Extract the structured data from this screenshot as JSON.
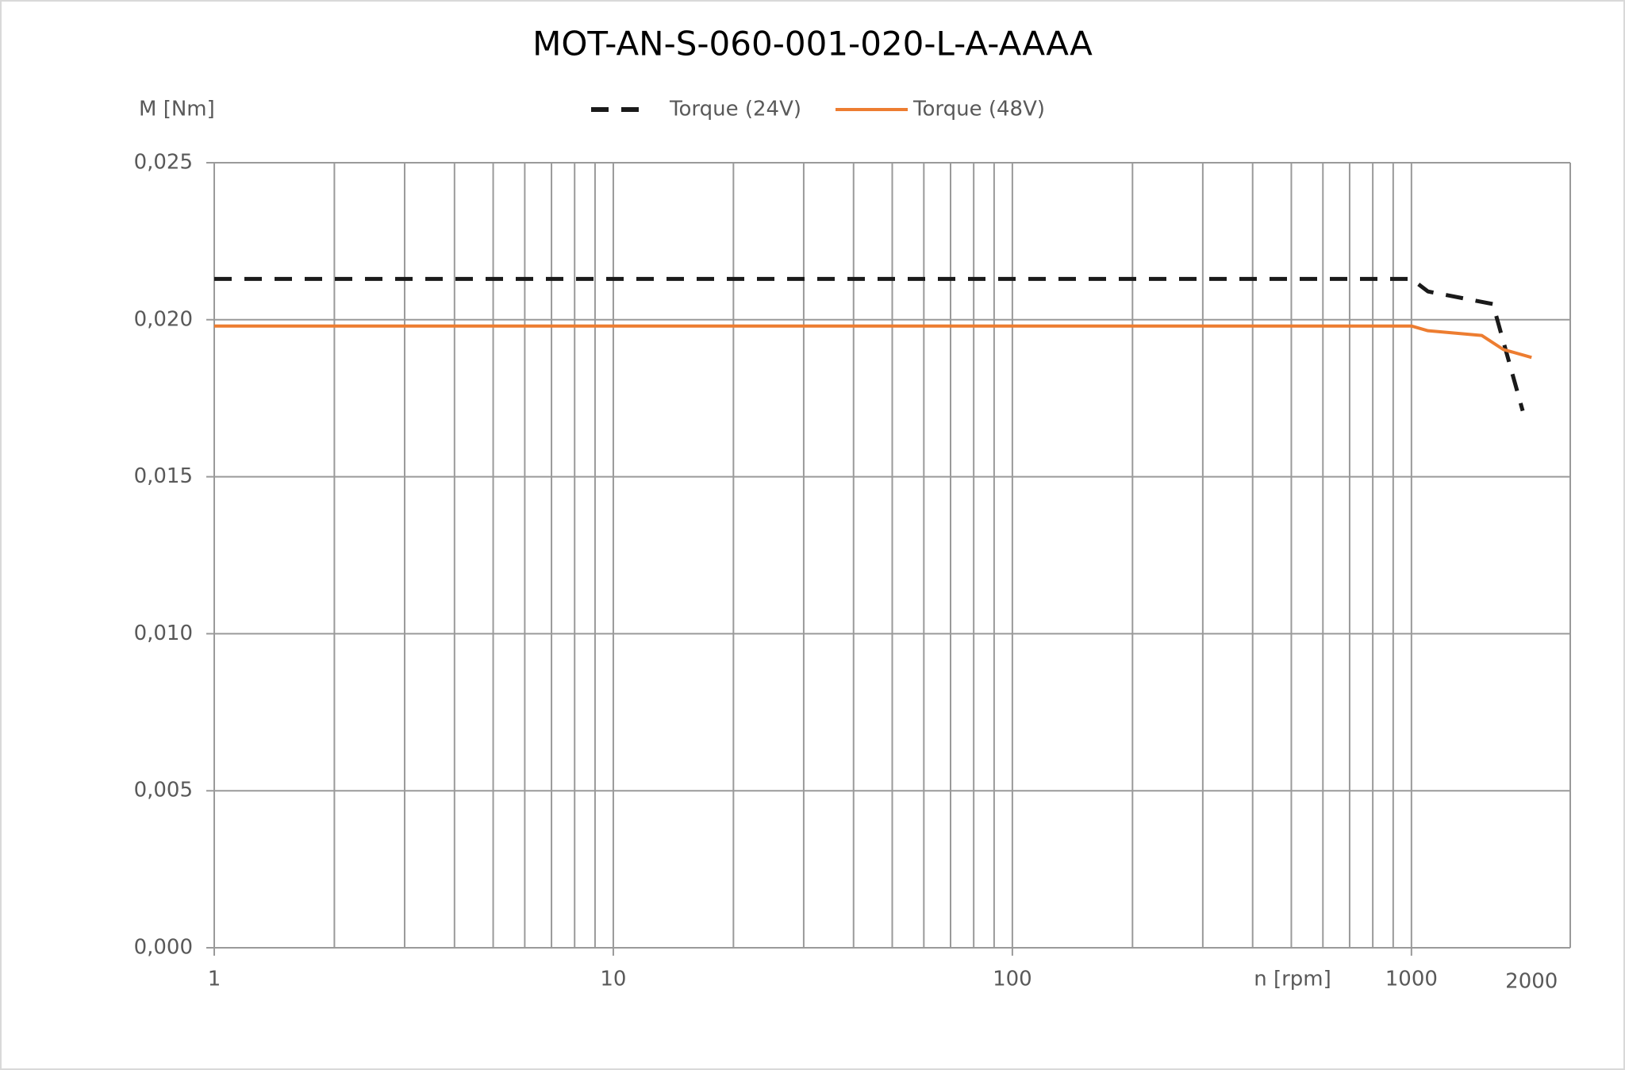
{
  "chart_data": {
    "type": "line",
    "title": "MOT-AN-S-060-001-020-L-A-AAAA",
    "y_label": "M [Nm]",
    "x_label": "n [rpm]",
    "x_scale": "log",
    "grid": true,
    "xlim": [
      1,
      2500
    ],
    "xticks": [
      1,
      10,
      100,
      1000,
      2000
    ],
    "ylim": [
      0,
      0.025
    ],
    "yticks": [
      {
        "value": 0,
        "label": "0,000"
      },
      {
        "value": 0.005,
        "label": "0,005"
      },
      {
        "value": 0.01,
        "label": "0,010"
      },
      {
        "value": 0.015,
        "label": "0,015"
      },
      {
        "value": 0.02,
        "label": "0,020"
      },
      {
        "value": 0.025,
        "label": "0,025"
      }
    ],
    "series": [
      {
        "name": "Torque (24V)",
        "color": "#1a1a1a",
        "dashed": true,
        "x": [
          1,
          1000,
          1100,
          1600,
          1900
        ],
        "values": [
          0.0213,
          0.0213,
          0.0209,
          0.0205,
          0.0171
        ]
      },
      {
        "name": "Torque (48V)",
        "color": "#ed7d31",
        "dashed": false,
        "x": [
          1,
          1000,
          1100,
          1500,
          1700,
          2000
        ],
        "values": [
          0.0198,
          0.0198,
          0.01965,
          0.0195,
          0.01905,
          0.0188
        ]
      }
    ]
  }
}
